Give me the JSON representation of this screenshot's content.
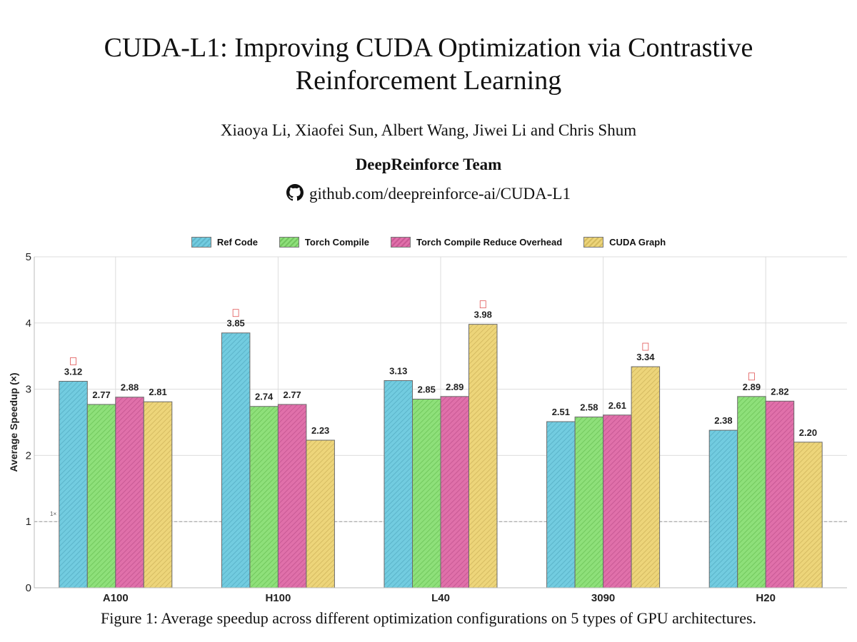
{
  "paper": {
    "title_line1": "CUDA-L1: Improving CUDA Optimization via Contrastive",
    "title_line2": "Reinforcement Learning",
    "authors": "Xiaoya Li, Xiaofei Sun, Albert Wang, Jiwei Li and Chris Shum",
    "team": "DeepReinforce Team",
    "repo": "github.com/deepreinforce-ai/CUDA-L1",
    "caption": "Figure 1: Average speedup across different optimization configurations on 5 types of GPU architectures."
  },
  "colors": {
    "ref_code": "#72cce0",
    "torch_compile": "#8ee07a",
    "torch_compile_reduce": "#e070aa",
    "cuda_graph": "#edd57a",
    "bar_border": "#6a6a6a",
    "grid": "#dddddd",
    "baseline": "#999999"
  },
  "chart_data": {
    "type": "bar",
    "title": "",
    "xlabel": "",
    "ylabel": "Average Speedup (×)",
    "ylim": [
      0,
      5
    ],
    "yticks": [
      0,
      1,
      2,
      3,
      4,
      5
    ],
    "categories": [
      "A100",
      "H100",
      "L40",
      "3090",
      "H20"
    ],
    "series": [
      {
        "name": "Ref Code",
        "values": [
          3.12,
          3.85,
          3.13,
          2.51,
          2.38
        ],
        "labels": [
          "3.12",
          "3.85",
          "3.13",
          "2.51",
          "2.38"
        ]
      },
      {
        "name": "Torch Compile",
        "values": [
          2.77,
          2.74,
          2.85,
          2.58,
          2.89
        ],
        "labels": [
          "2.77",
          "2.74",
          "2.85",
          "2.58",
          "2.89"
        ]
      },
      {
        "name": "Torch Compile Reduce Overhead",
        "values": [
          2.88,
          2.77,
          2.89,
          2.61,
          2.82
        ],
        "labels": [
          "2.88",
          "2.77",
          "2.89",
          "2.61",
          "2.82"
        ]
      },
      {
        "name": "CUDA Graph",
        "values": [
          2.81,
          2.23,
          3.98,
          3.34,
          2.2
        ],
        "labels": [
          "2.81",
          "2.23",
          "3.98",
          "3.34",
          "2.20"
        ]
      }
    ],
    "baseline": {
      "value": 1,
      "label": "1×"
    },
    "grid": true,
    "legend": "top-center"
  }
}
